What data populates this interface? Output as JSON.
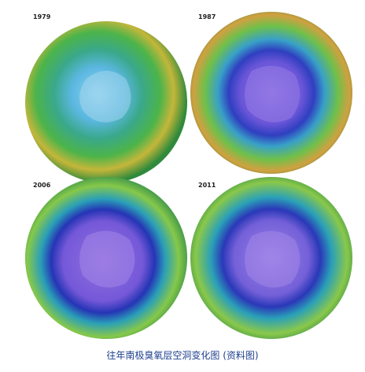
{
  "panels": [
    {
      "label": "1979"
    },
    {
      "label": "1987"
    },
    {
      "label": "2006"
    },
    {
      "label": "2011"
    }
  ],
  "caption": "往年南极臭氧层空洞变化图 (资料图)"
}
